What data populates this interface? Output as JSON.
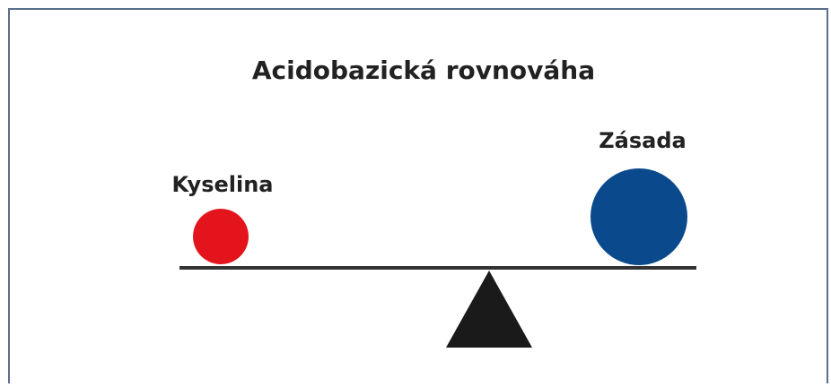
{
  "title": "Acidobazická rovnováha",
  "nodes": [
    {
      "label": "Kyselina"
    },
    {
      "label": "Zásada"
    }
  ]
}
